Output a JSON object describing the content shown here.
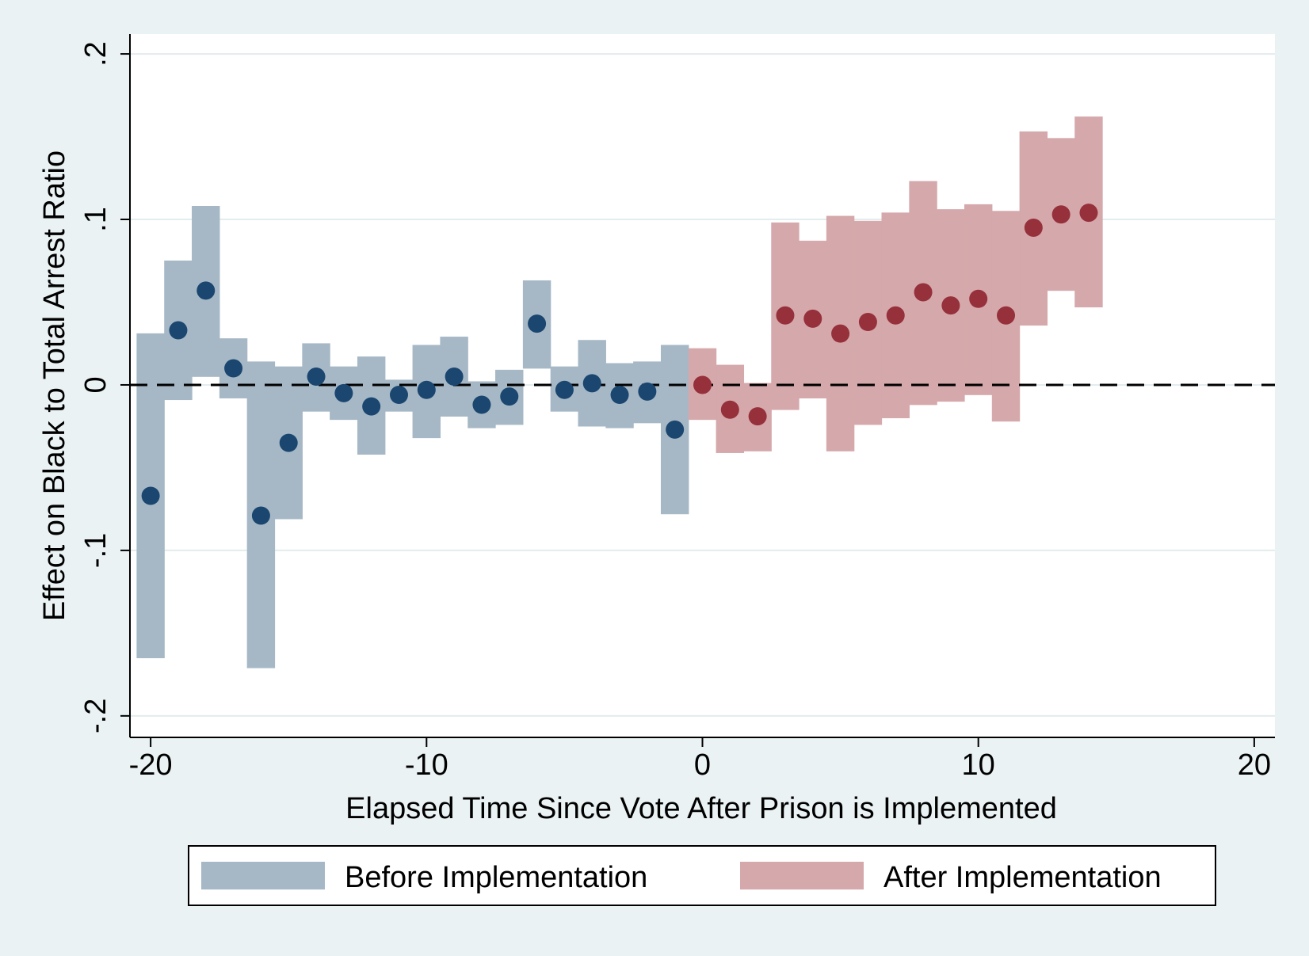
{
  "chart_data": {
    "type": "scatter",
    "title": "",
    "xlabel": "Elapsed Time Since Vote After Prison is Implemented",
    "ylabel": "Effect on Black to Total Arrest Ratio",
    "xlim": [
      -20.75,
      20.75
    ],
    "ylim": [
      -0.213,
      0.212
    ],
    "x_ticks": [
      -20,
      -10,
      0,
      10,
      20
    ],
    "x_tick_labels": [
      "-20",
      "-10",
      "0",
      "10",
      "20"
    ],
    "y_ticks": [
      -0.2,
      -0.1,
      0,
      0.1,
      0.2
    ],
    "y_tick_labels": [
      "-.2",
      "-.1",
      "0",
      ".1",
      ".2"
    ],
    "grid": true,
    "reference_line": {
      "y": 0,
      "style": "dashed"
    },
    "legend_position": "bottom",
    "colors": {
      "background": "#eaf2f3",
      "plot_background": "#ffffff",
      "gridline": "#e3ecee",
      "before_band": "#a6b8c6",
      "before_point": "#1a4670",
      "after_band": "#d5a8ab",
      "after_point": "#96303a"
    },
    "series": [
      {
        "name": "Before Implementation",
        "points": [
          {
            "x": -20,
            "y": -0.067,
            "lo": -0.165,
            "hi": 0.031
          },
          {
            "x": -19,
            "y": 0.033,
            "lo": -0.009,
            "hi": 0.075
          },
          {
            "x": -18,
            "y": 0.057,
            "lo": 0.005,
            "hi": 0.108
          },
          {
            "x": -17,
            "y": 0.01,
            "lo": -0.008,
            "hi": 0.028
          },
          {
            "x": -16,
            "y": -0.079,
            "lo": -0.171,
            "hi": 0.014
          },
          {
            "x": -15,
            "y": -0.035,
            "lo": -0.081,
            "hi": 0.011
          },
          {
            "x": -14,
            "y": 0.005,
            "lo": -0.016,
            "hi": 0.025
          },
          {
            "x": -13,
            "y": -0.005,
            "lo": -0.021,
            "hi": 0.011
          },
          {
            "x": -12,
            "y": -0.013,
            "lo": -0.042,
            "hi": 0.017
          },
          {
            "x": -11,
            "y": -0.006,
            "lo": -0.016,
            "hi": 0.003
          },
          {
            "x": -10,
            "y": -0.003,
            "lo": -0.032,
            "hi": 0.024
          },
          {
            "x": -9,
            "y": 0.005,
            "lo": -0.019,
            "hi": 0.029
          },
          {
            "x": -8,
            "y": -0.012,
            "lo": -0.026,
            "hi": 0.002
          },
          {
            "x": -7,
            "y": -0.007,
            "lo": -0.024,
            "hi": 0.009
          },
          {
            "x": -6,
            "y": 0.037,
            "lo": 0.01,
            "hi": 0.063
          },
          {
            "x": -5,
            "y": -0.003,
            "lo": -0.016,
            "hi": 0.011
          },
          {
            "x": -4,
            "y": 0.001,
            "lo": -0.025,
            "hi": 0.027
          },
          {
            "x": -3,
            "y": -0.006,
            "lo": -0.026,
            "hi": 0.013
          },
          {
            "x": -2,
            "y": -0.004,
            "lo": -0.023,
            "hi": 0.014
          },
          {
            "x": -1,
            "y": -0.027,
            "lo": -0.078,
            "hi": 0.024
          }
        ]
      },
      {
        "name": "After Implementation",
        "points": [
          {
            "x": 0,
            "y": 0.0,
            "lo": -0.021,
            "hi": 0.022
          },
          {
            "x": 1,
            "y": -0.015,
            "lo": -0.041,
            "hi": 0.012
          },
          {
            "x": 2,
            "y": -0.019,
            "lo": -0.04,
            "hi": 0.001
          },
          {
            "x": 3,
            "y": 0.042,
            "lo": -0.015,
            "hi": 0.098
          },
          {
            "x": 4,
            "y": 0.04,
            "lo": -0.008,
            "hi": 0.087
          },
          {
            "x": 5,
            "y": 0.031,
            "lo": -0.04,
            "hi": 0.102
          },
          {
            "x": 6,
            "y": 0.038,
            "lo": -0.024,
            "hi": 0.099
          },
          {
            "x": 7,
            "y": 0.042,
            "lo": -0.02,
            "hi": 0.104
          },
          {
            "x": 8,
            "y": 0.056,
            "lo": -0.012,
            "hi": 0.123
          },
          {
            "x": 9,
            "y": 0.048,
            "lo": -0.01,
            "hi": 0.106
          },
          {
            "x": 10,
            "y": 0.052,
            "lo": -0.006,
            "hi": 0.109
          },
          {
            "x": 11,
            "y": 0.042,
            "lo": -0.022,
            "hi": 0.105
          },
          {
            "x": 12,
            "y": 0.095,
            "lo": 0.036,
            "hi": 0.153
          },
          {
            "x": 13,
            "y": 0.103,
            "lo": 0.057,
            "hi": 0.149
          },
          {
            "x": 14,
            "y": 0.104,
            "lo": 0.047,
            "hi": 0.162
          }
        ]
      }
    ],
    "legend": [
      {
        "label": "Before Implementation"
      },
      {
        "label": "After Implementation"
      }
    ]
  }
}
